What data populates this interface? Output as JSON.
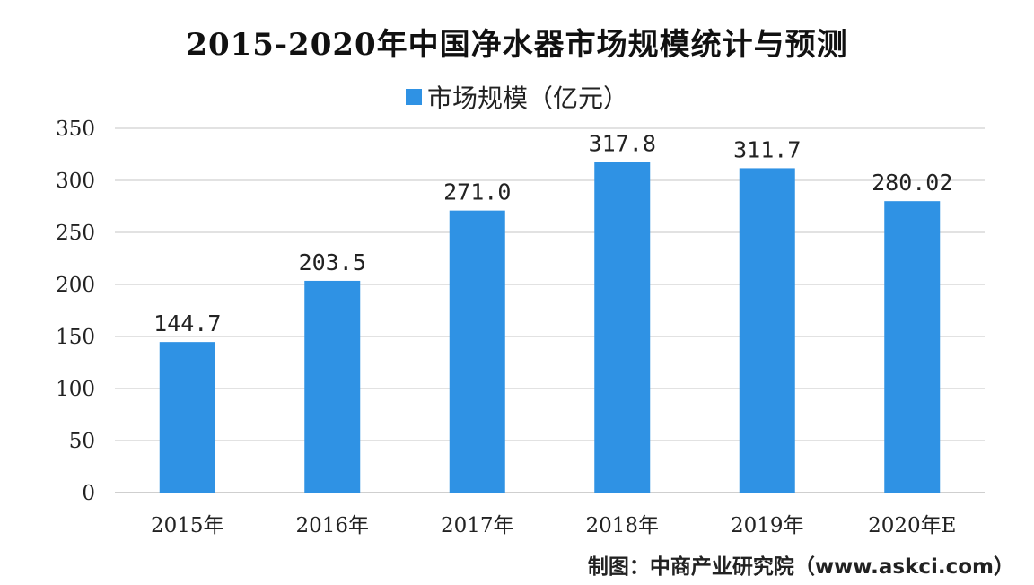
{
  "title": "2015-2020年中国净水器市场规模统计与预测",
  "legend_label": "市场规模（亿元）",
  "source": "制图：中商产业研究院（www.askci.com）",
  "colors": {
    "bar": "#2f92e4",
    "grid": "#d9d9d9",
    "axis": "#bfbfbf"
  },
  "chart_data": {
    "type": "bar",
    "title": "2015-2020年中国净水器市场规模统计与预测",
    "categories": [
      "2015年",
      "2016年",
      "2017年",
      "2018年",
      "2019年",
      "2020年E"
    ],
    "series": [
      {
        "name": "市场规模（亿元）",
        "values": [
          144.7,
          203.5,
          271.0,
          317.8,
          311.7,
          280.02
        ]
      }
    ],
    "data_labels": [
      "144.7",
      "203.5",
      "271.0",
      "317.8",
      "311.7",
      "280.02"
    ],
    "ylim": [
      0,
      350
    ],
    "yticks": [
      0,
      50,
      100,
      150,
      200,
      250,
      300,
      350
    ],
    "grid": true,
    "legend_position": "top"
  }
}
